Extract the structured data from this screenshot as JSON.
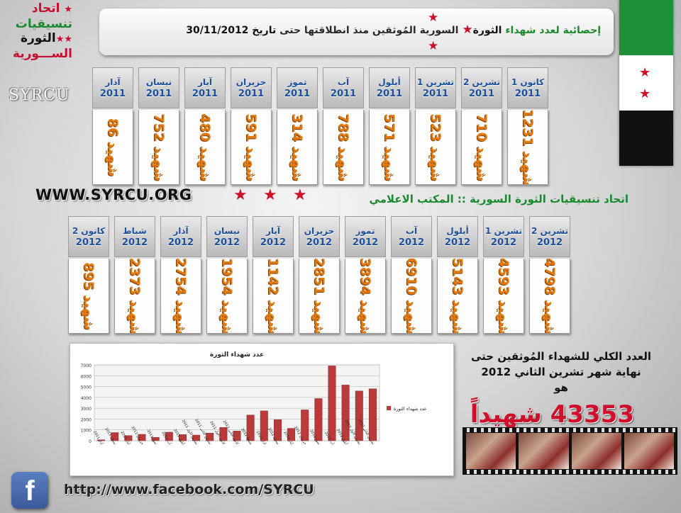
{
  "logo": {
    "line1": "اتحاد",
    "line2": "تنسيقيات",
    "line3": "الثورة",
    "line4": "الســـورية",
    "brand": "SYRCU"
  },
  "title": {
    "part1": "إحصائية لعدد شهداء",
    "part2": "الثورة",
    "part3": "السورية المُوثقين منذ انطلاقتها حتى",
    "part4": "تاريخ",
    "date": "30/11/2012"
  },
  "flag": {
    "colors": [
      "#1f8f3a",
      "#ffffff",
      "#111111"
    ],
    "star_color": "#d0102a"
  },
  "months_2011": [
    {
      "month": "كانون 1",
      "year": "2011",
      "count": "1231"
    },
    {
      "month": "تشرين 2",
      "year": "2011",
      "count": "710"
    },
    {
      "month": "تشرين 1",
      "year": "2011",
      "count": "523"
    },
    {
      "month": "أيلول",
      "year": "2011",
      "count": "571"
    },
    {
      "month": "آب",
      "year": "2011",
      "count": "788"
    },
    {
      "month": "تموز",
      "year": "2011",
      "count": "314"
    },
    {
      "month": "حزيران",
      "year": "2011",
      "count": "591"
    },
    {
      "month": "آيار",
      "year": "2011",
      "count": "480"
    },
    {
      "month": "نيسان",
      "year": "2011",
      "count": "752"
    },
    {
      "month": "آذار",
      "year": "2011",
      "count": "86"
    }
  ],
  "months_2012": [
    {
      "month": "تشرين 2",
      "year": "2012",
      "count": "4798"
    },
    {
      "month": "تشرين 1",
      "year": "2012",
      "count": "4593"
    },
    {
      "month": "أيلول",
      "year": "2012",
      "count": "5143"
    },
    {
      "month": "آب",
      "year": "2012",
      "count": "6910"
    },
    {
      "month": "تموز",
      "year": "2012",
      "count": "3894"
    },
    {
      "month": "حزيران",
      "year": "2012",
      "count": "2851"
    },
    {
      "month": "آيار",
      "year": "2012",
      "count": "1142"
    },
    {
      "month": "نيسان",
      "year": "2012",
      "count": "1954"
    },
    {
      "month": "آذار",
      "year": "2012",
      "count": "2754"
    },
    {
      "month": "شباط",
      "year": "2012",
      "count": "2373"
    },
    {
      "month": "كانون 2",
      "year": "2012",
      "count": "895"
    }
  ],
  "martyr_word": "شهيد",
  "website": "WWW.SYRCU.ORG",
  "union_label": "اتحاد تنسيقيات الثورة السورية :: المكتب الاعلامي",
  "total": {
    "line1": "العدد الكلي للشهداء المُوثقين حتى",
    "line2": "نهاية شهر تشرين الثاني 2012",
    "line3": "هو",
    "value": "43353 شهيداً"
  },
  "facebook_url": "http://www.facebook.com/SYRCU",
  "chart_data": {
    "type": "bar",
    "title": "عدد شهداء الثورة",
    "legend": "عدد شهداء الثورة",
    "legend_position": "right",
    "grid": true,
    "bar_color": "#b83a3a",
    "ylim": [
      0,
      7000
    ],
    "yticks": [
      0,
      1000,
      2000,
      3000,
      4000,
      5000,
      6000,
      7000
    ],
    "categories": [
      "آذار 2011",
      "نيسان 2011",
      "آيار 2011",
      "حزيران 2011",
      "تموز 2011",
      "آب 2011",
      "أيلول 2011",
      "تشرين الأول 2011",
      "تشرين الثاني 2011",
      "كانون الأول 2011",
      "كانون الثاني 2012",
      "شباط 2012",
      "آذار 2012",
      "نيسان 2012",
      "آيار 2012",
      "حزيران 2012",
      "تموز 2012",
      "آب 2012",
      "أيلول 2012",
      "تشرين الأول 2012",
      "تشرين الثاني 2012"
    ],
    "values": [
      86,
      752,
      480,
      591,
      314,
      788,
      571,
      523,
      710,
      1231,
      895,
      2373,
      2754,
      1954,
      1142,
      2851,
      3894,
      6910,
      5143,
      4593,
      4798
    ]
  }
}
